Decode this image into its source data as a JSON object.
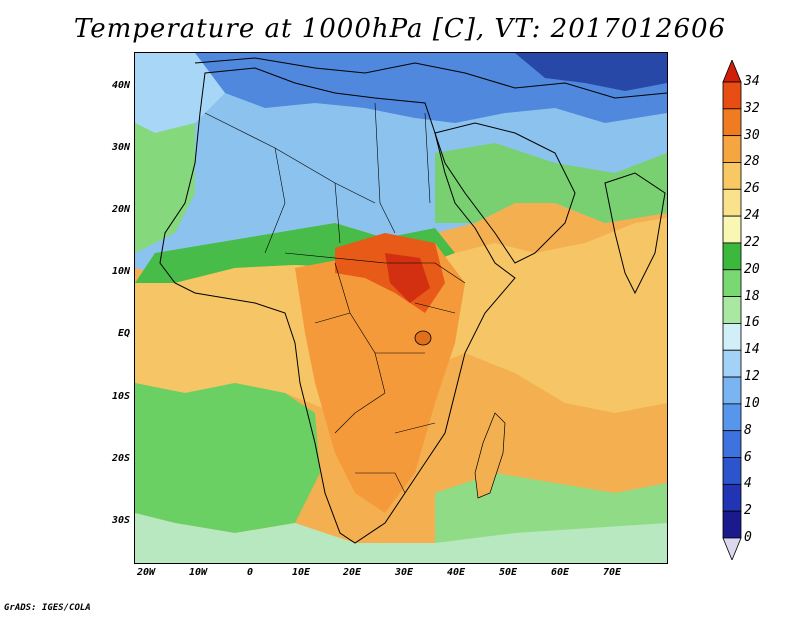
{
  "title": "Temperature at 1000hPa [C], VT: 2017012606",
  "credit": "GrADS: IGES/COLA",
  "map": {
    "lon_ticks": [
      "20W",
      "10W",
      "0",
      "10E",
      "20E",
      "30E",
      "40E",
      "50E",
      "60E",
      "70E"
    ],
    "lat_ticks": [
      "40N",
      "30N",
      "20N",
      "10N",
      "EQ",
      "10S",
      "20S",
      "30S"
    ]
  },
  "colorbar": {
    "levels": [
      "0",
      "2",
      "4",
      "6",
      "8",
      "10",
      "12",
      "14",
      "16",
      "18",
      "20",
      "22",
      "24",
      "26",
      "28",
      "30",
      "32",
      "34"
    ],
    "colors": [
      "#1a1a8c",
      "#2034b4",
      "#2c54cc",
      "#3e72de",
      "#5896ec",
      "#7ab4f2",
      "#a2d2f8",
      "#d2eef6",
      "#a8e8a0",
      "#7ad872",
      "#3cb83c",
      "#faf6b4",
      "#fae28c",
      "#f8c864",
      "#f5a640",
      "#f07c22",
      "#e84e14",
      "#d01e0a",
      "#dcd8f0"
    ]
  }
}
